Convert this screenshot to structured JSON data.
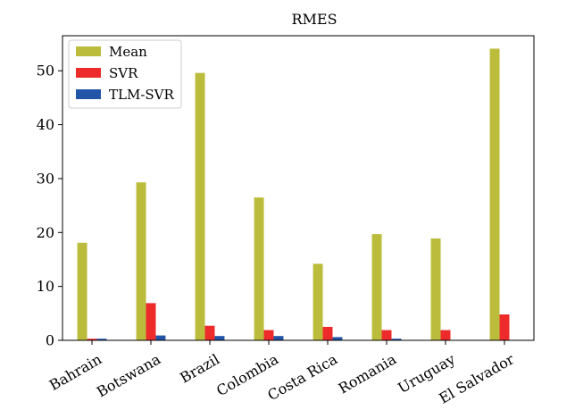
{
  "chart_data": {
    "type": "bar",
    "title": "RMES",
    "xlabel": "",
    "ylabel": "",
    "categories": [
      "Bahrain",
      "Botswana",
      "Brazil",
      "Colombia",
      "Costa Rica",
      "Romania",
      "Uruguay",
      "El Salvador"
    ],
    "series": [
      {
        "name": "Mean",
        "color": "#bcbc3c",
        "values": [
          18.1,
          29.3,
          49.6,
          26.5,
          14.2,
          19.7,
          18.9,
          54.1
        ]
      },
      {
        "name": "SVR",
        "color": "#ee2b2b",
        "values": [
          0.3,
          6.9,
          2.7,
          1.9,
          2.5,
          1.9,
          1.9,
          4.8
        ]
      },
      {
        "name": "TLM-SVR",
        "color": "#2255a8",
        "values": [
          0.3,
          0.9,
          0.8,
          0.8,
          0.6,
          0.3,
          0.0,
          0.0
        ]
      }
    ],
    "ylim": [
      0,
      56.5
    ],
    "yticks": [
      0,
      10,
      20,
      30,
      40,
      50
    ],
    "grid": false,
    "legend_position": "top-left"
  }
}
